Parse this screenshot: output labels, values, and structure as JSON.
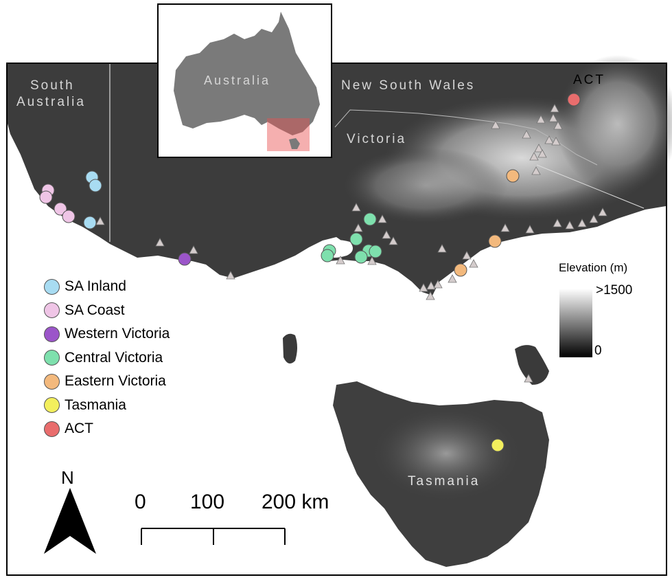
{
  "regions": {
    "south_australia_line1": "South",
    "south_australia_line2": "Australia",
    "nsw": "New South Wales",
    "victoria": "Victoria",
    "act": "ACT",
    "tasmania": "Tasmania",
    "inset_australia": "Australia"
  },
  "legend": [
    {
      "label": "SA Inland",
      "color": "#a8dcf2"
    },
    {
      "label": "SA Coast",
      "color": "#efc5e6"
    },
    {
      "label": "Western Victoria",
      "color": "#9b55c9"
    },
    {
      "label": "Central Victoria",
      "color": "#7ee0ad"
    },
    {
      "label": "Eastern Victoria",
      "color": "#f3b97d"
    },
    {
      "label": "Tasmania",
      "color": "#f3ef5d"
    },
    {
      "label": "ACT",
      "color": "#e96d6d"
    }
  ],
  "elevation": {
    "title": "Elevation (m)",
    "max_label": ">1500",
    "min_label": "0"
  },
  "scale_bar": {
    "labels": [
      "0",
      "100",
      "200 km"
    ]
  },
  "north_arrow": {
    "label": "N"
  },
  "colors": {
    "frame": "#000000",
    "land_dark": "#3a3a3a",
    "land_light": "#cfcfcf",
    "sea": "#ffffff",
    "triangle_fill": "#d8d0d0",
    "inset_land": "#7a7a7a",
    "inset_highlight": "#f4a6a6"
  }
}
